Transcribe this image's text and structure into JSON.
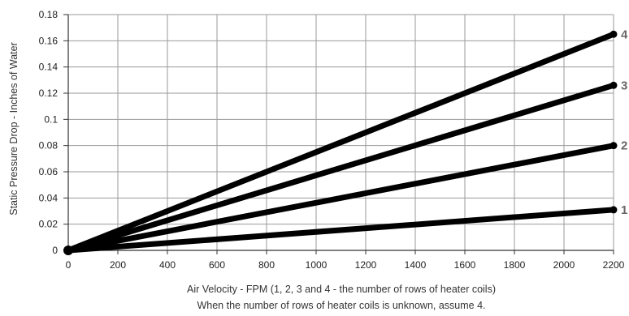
{
  "chart_data": {
    "type": "line",
    "xlabel": "Air Velocity - FPM (1, 2, 3 and 4 - the number of rows of heater coils)",
    "note": "When the number of rows of heater coils is unknown, assume 4.",
    "ylabel": "Static Pressure Drop - Inches of Water",
    "xlim": [
      0,
      2200
    ],
    "ylim": [
      0,
      0.18
    ],
    "x_ticks": [
      "0",
      "200",
      "400",
      "600",
      "800",
      "1000",
      "1200",
      "1400",
      "1600",
      "1800",
      "2000",
      "2200"
    ],
    "y_ticks": [
      "0",
      "0.02",
      "0.04",
      "0.06",
      "0.08",
      "0.1",
      "0.12",
      "0.14",
      "0.16",
      "0.18"
    ],
    "grid": true,
    "series": [
      {
        "name": "1",
        "x": [
          0,
          2200
        ],
        "y": [
          0,
          0.031
        ]
      },
      {
        "name": "2",
        "x": [
          0,
          2200
        ],
        "y": [
          0,
          0.08
        ]
      },
      {
        "name": "3",
        "x": [
          0,
          2200
        ],
        "y": [
          0,
          0.126
        ]
      },
      {
        "name": "4",
        "x": [
          0,
          2200
        ],
        "y": [
          0,
          0.165
        ]
      }
    ],
    "line_color": "#000000",
    "label_color": "#666666"
  }
}
